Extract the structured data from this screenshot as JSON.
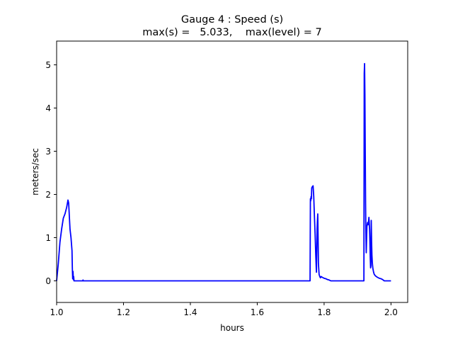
{
  "chart_data": {
    "type": "line",
    "title": "Gauge 4 : Speed (s)",
    "subtitle": "max(s) =   5.033,    max(level) = 7",
    "xlabel": "hours",
    "ylabel": "meters/sec",
    "xlim": [
      1.0,
      2.05
    ],
    "ylim": [
      -0.5,
      5.55
    ],
    "xticks": [
      1.0,
      1.2,
      1.4,
      1.6,
      1.8,
      2.0
    ],
    "xtick_labels": [
      "1.0",
      "1.2",
      "1.4",
      "1.6",
      "1.8",
      "2.0"
    ],
    "yticks": [
      0,
      1,
      2,
      3,
      4,
      5
    ],
    "ytick_labels": [
      "0",
      "1",
      "2",
      "3",
      "4",
      "5"
    ],
    "grid": false,
    "line_color": "#0000ff",
    "series": [
      {
        "x": [
          1.0,
          1.005,
          1.01,
          1.015,
          1.02,
          1.025,
          1.03,
          1.034,
          1.036,
          1.038,
          1.04,
          1.043,
          1.046,
          1.047,
          1.048,
          1.049,
          1.05,
          1.051,
          1.052,
          1.055,
          1.06,
          1.078,
          1.079,
          1.08,
          1.1,
          1.3,
          1.5,
          1.7,
          1.758,
          1.759,
          1.76,
          1.761,
          1.762,
          1.763,
          1.764,
          1.765,
          1.767,
          1.769,
          1.771,
          1.773,
          1.775,
          1.777,
          1.779,
          1.781,
          1.782,
          1.783,
          1.785,
          1.787,
          1.789,
          1.791,
          1.795,
          1.8,
          1.805,
          1.81,
          1.815,
          1.82,
          1.85,
          1.88,
          1.9,
          1.919,
          1.92,
          1.921,
          1.922,
          1.923,
          1.924,
          1.925,
          1.926,
          1.928,
          1.93,
          1.932,
          1.934,
          1.936,
          1.937,
          1.938,
          1.939,
          1.94,
          1.941,
          1.942,
          1.943,
          1.944,
          1.945,
          1.946,
          1.948,
          1.95,
          1.953,
          1.956,
          1.96,
          1.965,
          1.97,
          1.975,
          1.98,
          1.99,
          2.0
        ],
        "y": [
          0.0,
          0.4,
          0.9,
          1.2,
          1.45,
          1.55,
          1.7,
          1.87,
          1.8,
          1.5,
          1.2,
          1.0,
          0.7,
          0.3,
          0.05,
          0.22,
          0.03,
          0.1,
          0.0,
          0.0,
          0.0,
          0.0,
          0.02,
          0.0,
          0.0,
          0.0,
          0.0,
          0.0,
          0.0,
          1.9,
          1.85,
          1.95,
          1.9,
          2.15,
          2.17,
          2.18,
          2.2,
          1.95,
          1.5,
          1.1,
          0.6,
          0.2,
          1.2,
          1.55,
          1.0,
          0.4,
          0.15,
          0.1,
          0.07,
          0.1,
          0.08,
          0.06,
          0.05,
          0.03,
          0.02,
          0.0,
          0.0,
          0.0,
          0.0,
          0.0,
          4.8,
          5.03,
          4.3,
          3.0,
          1.8,
          1.1,
          0.65,
          1.25,
          1.35,
          1.3,
          1.47,
          1.2,
          0.9,
          0.55,
          0.3,
          0.35,
          1.4,
          0.9,
          0.6,
          0.45,
          0.35,
          0.28,
          0.2,
          0.15,
          0.12,
          0.1,
          0.08,
          0.06,
          0.05,
          0.03,
          0.0,
          0.0,
          0.0
        ]
      }
    ]
  }
}
